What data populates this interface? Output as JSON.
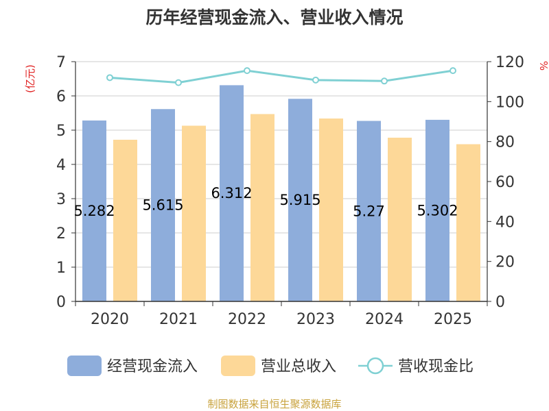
{
  "chart_data": {
    "type": "bar",
    "title": "历年经营现金流入、营业收入情况",
    "categories": [
      "2020",
      "2021",
      "2022",
      "2023",
      "2024",
      "2025"
    ],
    "series": [
      {
        "name": "经营现金流入",
        "type": "bar",
        "axis": "left",
        "color": "#8eaddb",
        "values": [
          5.282,
          5.615,
          6.312,
          5.915,
          5.27,
          5.302
        ],
        "data_labels": [
          "5.282",
          "5.615",
          "6.312",
          "5.915",
          "5.27",
          "5.302"
        ]
      },
      {
        "name": "营业总收入",
        "type": "bar",
        "axis": "left",
        "color": "#fdd898",
        "values": [
          4.72,
          5.13,
          5.47,
          5.34,
          4.78,
          4.59
        ]
      },
      {
        "name": "营收现金比",
        "type": "line",
        "axis": "right",
        "color": "#7fd0d3",
        "values": [
          112,
          109.5,
          115.5,
          110.8,
          110.3,
          115.5
        ]
      }
    ],
    "left_axis": {
      "label": "(亿元)",
      "min": 0,
      "max": 7,
      "ticks": [
        "0",
        "1",
        "2",
        "3",
        "4",
        "5",
        "6",
        "7"
      ]
    },
    "right_axis": {
      "label": "%",
      "min": 0,
      "max": 120,
      "ticks": [
        "0",
        "20",
        "40",
        "60",
        "80",
        "100",
        "120"
      ]
    },
    "grid": true,
    "legend_position": "bottom"
  },
  "footer": {
    "source": "制图数据来自恒生聚源数据库"
  },
  "colors": {
    "title": "#333333",
    "axis_label": "#e02020",
    "tick": "#333333",
    "grid": "#cccccc",
    "source": "#c8a23c"
  }
}
